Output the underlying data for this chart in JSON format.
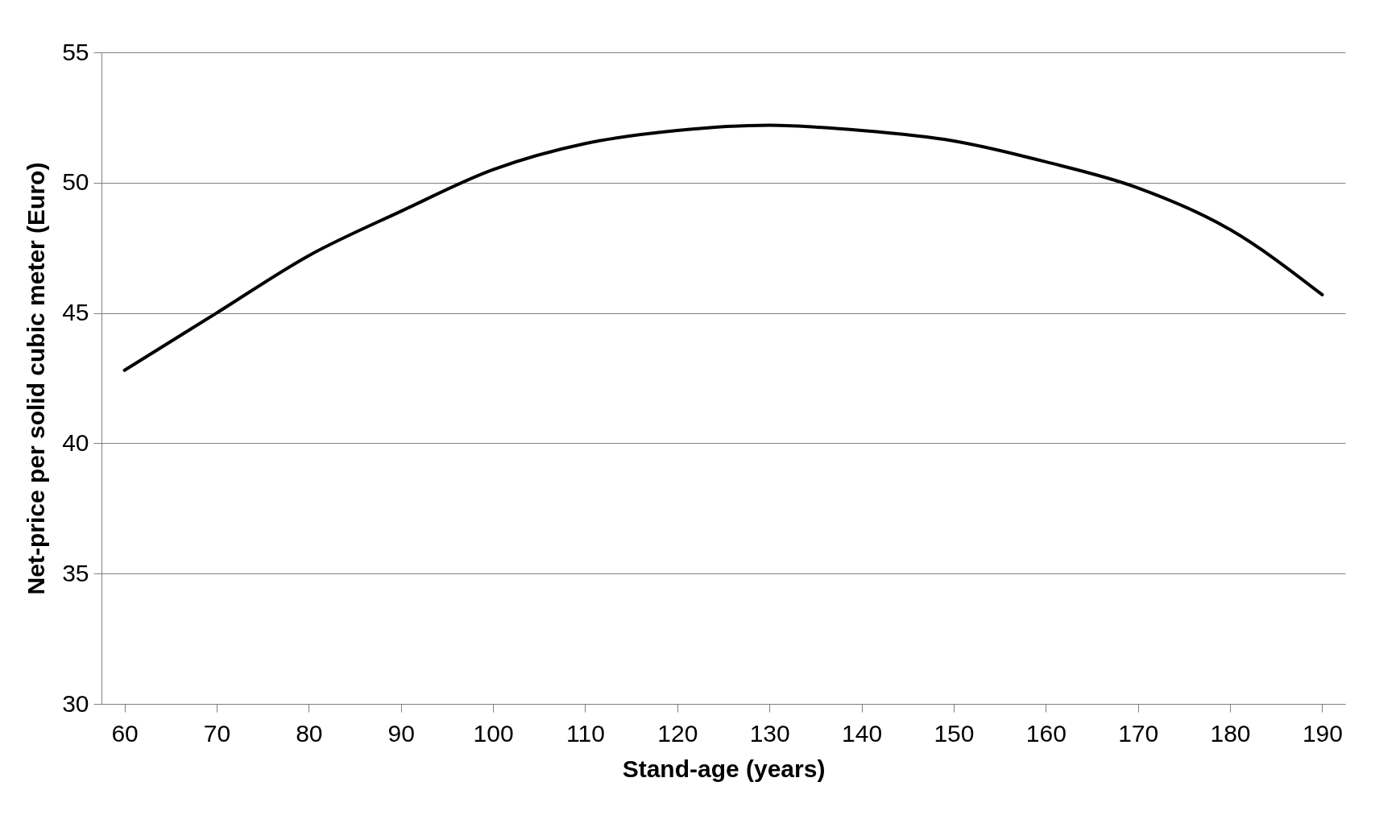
{
  "chart_data": {
    "type": "line",
    "xlabel": "Stand-age (years)",
    "ylabel": "Net-price per solid cubic meter (Euro)",
    "x": [
      60,
      70,
      80,
      90,
      100,
      110,
      120,
      130,
      140,
      150,
      160,
      170,
      180,
      190
    ],
    "series": [
      {
        "color": "#000000",
        "values": [
          42.8,
          45.0,
          47.2,
          48.9,
          50.5,
          51.5,
          52.0,
          52.2,
          52.0,
          51.6,
          50.8,
          49.8,
          48.2,
          45.7
        ]
      }
    ],
    "xlim": [
      57.5,
      192.5
    ],
    "xticks": [
      60,
      70,
      80,
      90,
      100,
      110,
      120,
      130,
      140,
      150,
      160,
      170,
      180,
      190
    ],
    "ylim": [
      30,
      55
    ],
    "yticks": [
      30,
      35,
      40,
      45,
      50,
      55
    ],
    "grid": "y",
    "marker": "none",
    "line_style": "solid"
  }
}
